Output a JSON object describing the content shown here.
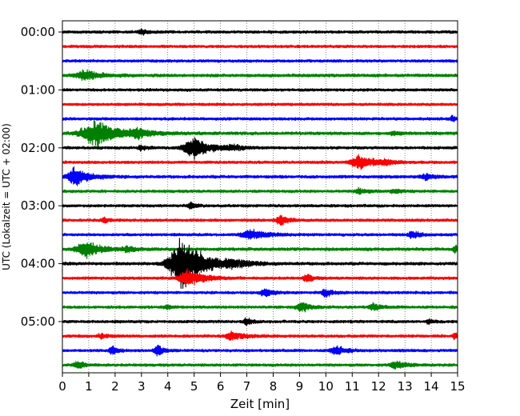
{
  "chart_data": {
    "type": "line",
    "title": "",
    "xlabel": "Zeit  [min]",
    "ylabel": "UTC (Lokalzeit = UTC + 02:00)",
    "xlim": [
      0,
      15
    ],
    "xticks": [
      0,
      1,
      2,
      3,
      4,
      5,
      6,
      7,
      8,
      9,
      10,
      11,
      12,
      13,
      14,
      15
    ],
    "ytick_labels": [
      "00:00",
      "01:00",
      "02:00",
      "03:00",
      "04:00",
      "05:00"
    ],
    "row_minutes": 15,
    "grid": "vertical dotted",
    "legend": "none",
    "colors_cycle": [
      "#000000",
      "#ff0000",
      "#0000ff",
      "#008000"
    ],
    "rows": [
      {
        "start": "00:00",
        "color": "#000000",
        "noise": 2.0,
        "events": [
          {
            "t": 3.0,
            "amp": 5,
            "dur": 0.25
          }
        ]
      },
      {
        "start": "00:15",
        "color": "#ff0000",
        "noise": 2.0,
        "events": []
      },
      {
        "start": "00:30",
        "color": "#0000ff",
        "noise": 2.0,
        "events": []
      },
      {
        "start": "00:45",
        "color": "#008000",
        "noise": 2.2,
        "events": [
          {
            "t": 0.9,
            "amp": 7,
            "dur": 0.8
          }
        ]
      },
      {
        "start": "01:00",
        "color": "#000000",
        "noise": 2.0,
        "events": []
      },
      {
        "start": "01:15",
        "color": "#ff0000",
        "noise": 2.0,
        "events": []
      },
      {
        "start": "01:30",
        "color": "#0000ff",
        "noise": 2.0,
        "events": [
          {
            "t": 14.8,
            "amp": 4,
            "dur": 0.2
          }
        ]
      },
      {
        "start": "01:45",
        "color": "#008000",
        "noise": 2.2,
        "events": [
          {
            "t": 1.3,
            "amp": 18,
            "dur": 1.3
          },
          {
            "t": 2.9,
            "amp": 5,
            "dur": 0.6
          },
          {
            "t": 12.6,
            "amp": 3,
            "dur": 0.3
          }
        ]
      },
      {
        "start": "02:00",
        "color": "#000000",
        "noise": 2.0,
        "events": [
          {
            "t": 3.0,
            "amp": 4,
            "dur": 0.3
          },
          {
            "t": 5.0,
            "amp": 15,
            "dur": 0.9
          },
          {
            "t": 6.5,
            "amp": 3,
            "dur": 0.6
          }
        ]
      },
      {
        "start": "02:15",
        "color": "#ff0000",
        "noise": 2.0,
        "events": [
          {
            "t": 11.3,
            "amp": 10,
            "dur": 0.8
          },
          {
            "t": 12.3,
            "amp": 3,
            "dur": 0.5
          }
        ]
      },
      {
        "start": "02:30",
        "color": "#0000ff",
        "noise": 2.2,
        "events": [
          {
            "t": 0.5,
            "amp": 13,
            "dur": 0.7
          },
          {
            "t": 13.8,
            "amp": 4,
            "dur": 0.4
          }
        ]
      },
      {
        "start": "02:45",
        "color": "#008000",
        "noise": 2.0,
        "events": [
          {
            "t": 11.3,
            "amp": 4,
            "dur": 0.4
          },
          {
            "t": 12.6,
            "amp": 3,
            "dur": 0.4
          }
        ]
      },
      {
        "start": "03:00",
        "color": "#000000",
        "noise": 2.0,
        "events": [
          {
            "t": 4.9,
            "amp": 4,
            "dur": 0.3
          }
        ]
      },
      {
        "start": "03:15",
        "color": "#ff0000",
        "noise": 2.0,
        "events": [
          {
            "t": 1.6,
            "amp": 3,
            "dur": 0.3
          },
          {
            "t": 8.3,
            "amp": 7,
            "dur": 0.4
          }
        ]
      },
      {
        "start": "03:30",
        "color": "#0000ff",
        "noise": 2.0,
        "events": [
          {
            "t": 7.2,
            "amp": 6,
            "dur": 0.9
          },
          {
            "t": 13.3,
            "amp": 5,
            "dur": 0.4
          }
        ]
      },
      {
        "start": "03:45",
        "color": "#008000",
        "noise": 2.2,
        "events": [
          {
            "t": 0.9,
            "amp": 12,
            "dur": 0.8
          },
          {
            "t": 2.5,
            "amp": 3,
            "dur": 0.5
          },
          {
            "t": 14.9,
            "amp": 5,
            "dur": 0.2
          }
        ]
      },
      {
        "start": "04:00",
        "color": "#000000",
        "noise": 2.2,
        "events": [
          {
            "t": 4.6,
            "amp": 35,
            "dur": 1.2
          },
          {
            "t": 6.5,
            "amp": 5,
            "dur": 0.8
          }
        ]
      },
      {
        "start": "04:15",
        "color": "#ff0000",
        "noise": 2.0,
        "events": [
          {
            "t": 4.8,
            "amp": 12,
            "dur": 0.8
          },
          {
            "t": 9.3,
            "amp": 6,
            "dur": 0.3
          }
        ]
      },
      {
        "start": "04:30",
        "color": "#0000ff",
        "noise": 2.0,
        "events": [
          {
            "t": 7.7,
            "amp": 5,
            "dur": 0.5
          },
          {
            "t": 10.0,
            "amp": 5,
            "dur": 0.4
          }
        ]
      },
      {
        "start": "04:45",
        "color": "#008000",
        "noise": 2.0,
        "events": [
          {
            "t": 9.1,
            "amp": 7,
            "dur": 0.5
          },
          {
            "t": 11.8,
            "amp": 5,
            "dur": 0.4
          },
          {
            "t": 4.0,
            "amp": 3,
            "dur": 0.3
          }
        ]
      },
      {
        "start": "05:00",
        "color": "#000000",
        "noise": 2.0,
        "events": [
          {
            "t": 7.0,
            "amp": 5,
            "dur": 0.3
          },
          {
            "t": 13.9,
            "amp": 4,
            "dur": 0.2
          }
        ]
      },
      {
        "start": "05:15",
        "color": "#ff0000",
        "noise": 2.0,
        "events": [
          {
            "t": 6.5,
            "amp": 7,
            "dur": 0.6
          },
          {
            "t": 1.5,
            "amp": 3,
            "dur": 0.4
          },
          {
            "t": 14.9,
            "amp": 4,
            "dur": 0.2
          }
        ]
      },
      {
        "start": "05:30",
        "color": "#0000ff",
        "noise": 2.0,
        "events": [
          {
            "t": 1.9,
            "amp": 6,
            "dur": 0.3
          },
          {
            "t": 3.6,
            "amp": 9,
            "dur": 0.3
          },
          {
            "t": 10.4,
            "amp": 7,
            "dur": 0.5
          }
        ]
      },
      {
        "start": "05:45",
        "color": "#008000",
        "noise": 2.0,
        "events": [
          {
            "t": 0.6,
            "amp": 5,
            "dur": 0.4
          },
          {
            "t": 12.7,
            "amp": 5,
            "dur": 0.6
          }
        ]
      }
    ]
  }
}
